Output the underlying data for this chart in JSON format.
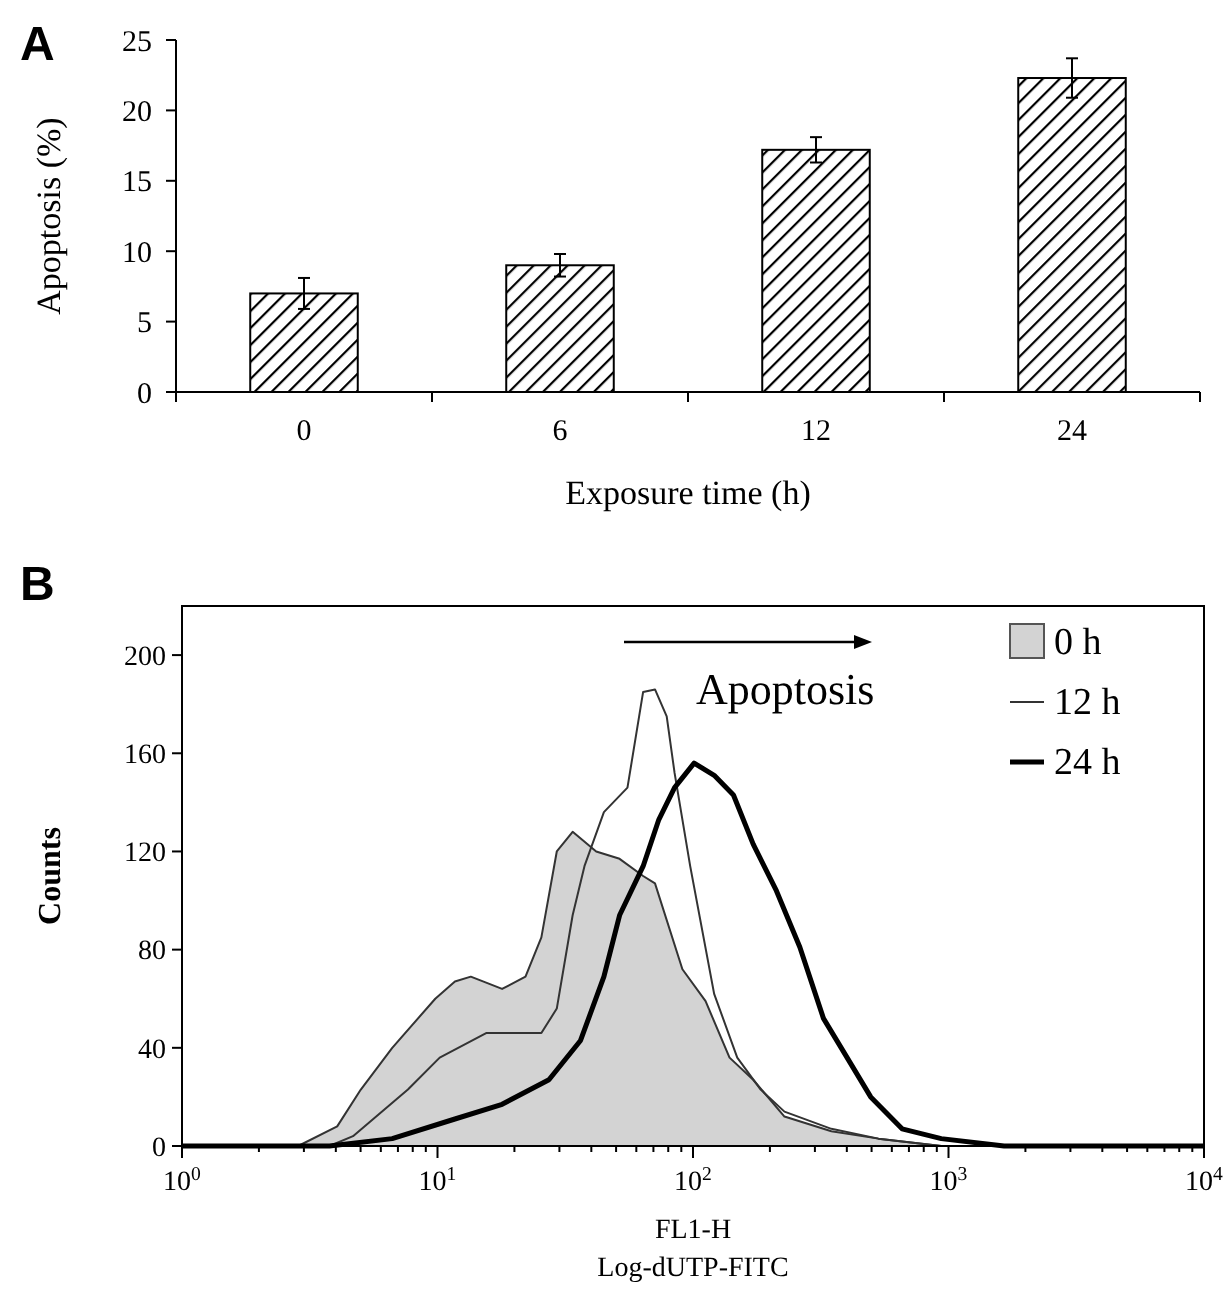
{
  "chart_data": [
    {
      "type": "bar",
      "categories": [
        "0",
        "6",
        "12",
        "24"
      ],
      "values": [
        7,
        9,
        17.2,
        22.3
      ],
      "errors": [
        1.1,
        0.8,
        0.9,
        1.4
      ],
      "color": "#000000",
      "ylim": [
        0,
        25
      ],
      "yticks": [
        0,
        5,
        10,
        15,
        20,
        25
      ],
      "xlabel": "Exposure time (h)",
      "ylabel": "Apoptosis (%)",
      "annotations": [
        "A"
      ],
      "grid": false
    },
    {
      "type": "line",
      "ylim": [
        0,
        220
      ],
      "yticks": [
        0,
        40,
        80,
        120,
        160,
        200
      ],
      "log": "x",
      "xlim": [
        1,
        10000
      ],
      "xticks": [
        {
          "value": 1,
          "label": "10$^{0}$"
        },
        {
          "value": 2,
          "label": null
        },
        {
          "value": 3,
          "label": null
        },
        {
          "value": 4,
          "label": null
        },
        {
          "value": 5,
          "label": null
        },
        {
          "value": 6,
          "label": null
        },
        {
          "value": 7,
          "label": null
        },
        {
          "value": 8,
          "label": null
        },
        {
          "value": 9,
          "label": null
        },
        {
          "value": 10,
          "label": "10$^{1}$"
        },
        {
          "value": 20,
          "label": null
        },
        {
          "value": 30,
          "label": null
        },
        {
          "value": 40,
          "label": null
        },
        {
          "value": 50,
          "label": null
        },
        {
          "value": 60,
          "label": null
        },
        {
          "value": 70,
          "label": null
        },
        {
          "value": 80,
          "label": null
        },
        {
          "value": 90,
          "label": null
        },
        {
          "value": 100,
          "label": "10$^{2}$"
        },
        {
          "value": 200,
          "label": null
        },
        {
          "value": 300,
          "label": null
        },
        {
          "value": 400,
          "label": null
        },
        {
          "value": 500,
          "label": null
        },
        {
          "value": 600,
          "label": null
        },
        {
          "value": 700,
          "label": null
        },
        {
          "value": 800,
          "label": null
        },
        {
          "value": 900,
          "label": null
        },
        {
          "value": 1000,
          "label": "10$^{3}$"
        },
        {
          "value": 2000,
          "label": null
        },
        {
          "value": 3000,
          "label": null
        },
        {
          "value": 4000,
          "label": null
        },
        {
          "value": 5000,
          "label": null
        },
        {
          "value": 6000,
          "label": null
        },
        {
          "value": 7000,
          "label": null
        },
        {
          "value": 8000,
          "label": null
        },
        {
          "value": 9000,
          "label": null
        },
        {
          "value": 10000,
          "label": "10$^{4}$"
        }
      ],
      "xlabel": "FL1-H\nLog-dUTP-FITC",
      "ylabel": "Counts",
      "legend": "top right",
      "grid": false,
      "annotations": [
        "B",
        "Apoptosis"
      ],
      "series": [
        {
          "name": "0 h",
          "type": "area",
          "color": "#d3d3d3",
          "x": [
            1,
            2.85,
            4.05,
            5.01,
            6.65,
            9.8,
            11.7,
            13.5,
            17.9,
            22.1,
            25.5,
            29.3,
            33.8,
            41.8,
            51.6,
            63.8,
            71,
            90.9,
            112,
            139,
            172,
            228,
            348,
            532,
            937,
            10000
          ],
          "values": [
            0,
            0,
            8,
            23,
            40,
            60,
            67,
            69,
            64,
            69,
            85,
            120,
            128,
            120,
            117,
            110,
            107,
            72,
            59,
            36,
            27,
            12,
            6,
            3,
            0,
            0
          ]
        },
        {
          "name": "12 h",
          "type": "line",
          "color": "#333333",
          "x": [
            1,
            3.78,
            4.67,
            7.66,
            10.2,
            15.5,
            25.5,
            29.3,
            33.8,
            37.6,
            44.8,
            55.4,
            63.8,
            71,
            78.9,
            84.7,
            97.5,
            121,
            149,
            184,
            228,
            348,
            532,
            937,
            10000
          ],
          "values": [
            0,
            0,
            4,
            23,
            36,
            46,
            46,
            56,
            94,
            114,
            136,
            146,
            185,
            186,
            175,
            152,
            114,
            62,
            36,
            23,
            14,
            7,
            3,
            0,
            0
          ]
        },
        {
          "name": "24 h",
          "type": "line",
          "color": "#000000",
          "x": [
            1,
            3.78,
            6.65,
            11.7,
            17.9,
            27.3,
            36.3,
            44.8,
            51.6,
            63.8,
            73.5,
            84.7,
            101,
            121,
            144,
            172,
            212,
            262,
            324,
            401,
            496,
            658,
            937,
            1650,
            10000
          ],
          "values": [
            0,
            0,
            3,
            11,
            17,
            27,
            43,
            69,
            94,
            114,
            133,
            146,
            156,
            151,
            143,
            123,
            104,
            81,
            52,
            36,
            20,
            7,
            3,
            0,
            0
          ]
        }
      ]
    }
  ]
}
